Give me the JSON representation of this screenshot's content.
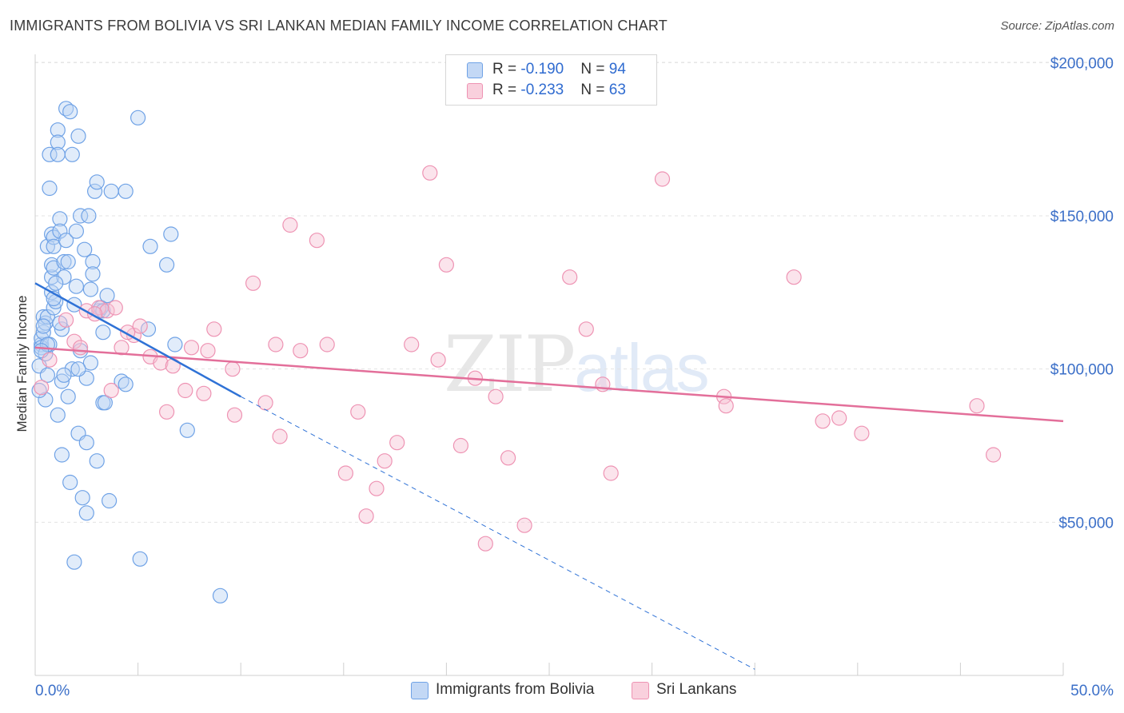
{
  "header": {
    "title": "IMMIGRANTS FROM BOLIVIA VS SRI LANKAN MEDIAN FAMILY INCOME CORRELATION CHART",
    "source": "Source: ZipAtlas.com"
  },
  "watermark": {
    "zip": "ZIP",
    "atlas": "atlas"
  },
  "legend_top": {
    "rows": [
      {
        "r_label": "R = ",
        "r_value": "-0.190",
        "n_label": "N = ",
        "n_value": "94",
        "color": "#a9c8f0"
      },
      {
        "r_label": "R = ",
        "r_value": "-0.233",
        "n_label": "N = ",
        "n_value": "63",
        "color": "#f5b8cb"
      }
    ]
  },
  "bottom_legend": {
    "items": [
      {
        "label": "Immigrants from Bolivia",
        "color": "#a9c8f0"
      },
      {
        "label": "Sri Lankans",
        "color": "#f5b8cb"
      }
    ]
  },
  "chart_data": {
    "type": "scatter",
    "title": "IMMIGRANTS FROM BOLIVIA VS SRI LANKAN MEDIAN FAMILY INCOME CORRELATION CHART",
    "xlabel": "",
    "ylabel": "Median Family Income",
    "xlim": [
      0,
      50
    ],
    "ylim": [
      0,
      205000
    ],
    "x_tick_labels": [
      "0.0%",
      "50.0%"
    ],
    "y_ticks": [
      50000,
      100000,
      150000,
      200000
    ],
    "y_tick_labels": [
      "$50,000",
      "$100,000",
      "$150,000",
      "$200,000"
    ],
    "grid": true,
    "colors": {
      "blue": "#6fa2e6",
      "pink": "#ee93b3",
      "blue_line": "#2f72d6",
      "pink_line": "#e36f9a"
    },
    "series": [
      {
        "name": "Immigrants from Bolivia",
        "points": [
          [
            0.2,
            101000
          ],
          [
            0.3,
            108000
          ],
          [
            0.3,
            110000
          ],
          [
            0.3,
            107000
          ],
          [
            0.4,
            117000
          ],
          [
            0.4,
            112000
          ],
          [
            0.5,
            115000
          ],
          [
            0.5,
            90000
          ],
          [
            0.5,
            105000
          ],
          [
            0.6,
            117000
          ],
          [
            0.6,
            140000
          ],
          [
            0.7,
            108000
          ],
          [
            0.8,
            125000
          ],
          [
            0.8,
            130000
          ],
          [
            0.8,
            134000
          ],
          [
            0.8,
            144000
          ],
          [
            0.9,
            120000
          ],
          [
            0.9,
            143000
          ],
          [
            0.9,
            133000
          ],
          [
            0.9,
            140000
          ],
          [
            0.7,
            170000
          ],
          [
            0.7,
            159000
          ],
          [
            1.0,
            122000
          ],
          [
            1.1,
            178000
          ],
          [
            1.1,
            174000
          ],
          [
            1.1,
            170000
          ],
          [
            1.1,
            85000
          ],
          [
            1.2,
            149000
          ],
          [
            1.2,
            145000
          ],
          [
            1.3,
            96000
          ],
          [
            1.3,
            72000
          ],
          [
            1.3,
            113000
          ],
          [
            1.4,
            135000
          ],
          [
            1.4,
            130000
          ],
          [
            1.5,
            185000
          ],
          [
            1.5,
            142000
          ],
          [
            1.6,
            135000
          ],
          [
            1.7,
            184000
          ],
          [
            1.8,
            170000
          ],
          [
            1.8,
            100000
          ],
          [
            1.9,
            121000
          ],
          [
            2.0,
            127000
          ],
          [
            2.0,
            145000
          ],
          [
            2.1,
            176000
          ],
          [
            2.1,
            79000
          ],
          [
            2.2,
            150000
          ],
          [
            2.2,
            106000
          ],
          [
            2.3,
            58000
          ],
          [
            2.5,
            76000
          ],
          [
            2.5,
            53000
          ],
          [
            2.5,
            97000
          ],
          [
            2.6,
            150000
          ],
          [
            2.7,
            126000
          ],
          [
            2.7,
            102000
          ],
          [
            2.8,
            135000
          ],
          [
            2.8,
            131000
          ],
          [
            2.9,
            158000
          ],
          [
            3.0,
            70000
          ],
          [
            3.0,
            161000
          ],
          [
            3.1,
            119000
          ],
          [
            3.2,
            120000
          ],
          [
            3.3,
            112000
          ],
          [
            3.3,
            89000
          ],
          [
            3.4,
            89000
          ],
          [
            3.5,
            124000
          ],
          [
            3.6,
            57000
          ],
          [
            3.7,
            158000
          ],
          [
            4.2,
            96000
          ],
          [
            4.4,
            158000
          ],
          [
            4.4,
            95000
          ],
          [
            5.0,
            182000
          ],
          [
            5.5,
            113000
          ],
          [
            5.6,
            140000
          ],
          [
            6.4,
            134000
          ],
          [
            6.6,
            144000
          ],
          [
            6.8,
            108000
          ],
          [
            7.4,
            80000
          ],
          [
            9.0,
            26000
          ],
          [
            5.1,
            38000
          ],
          [
            1.9,
            37000
          ],
          [
            1.7,
            63000
          ],
          [
            0.4,
            114000
          ],
          [
            0.6,
            108000
          ],
          [
            1.0,
            128000
          ],
          [
            1.4,
            98000
          ],
          [
            0.9,
            123000
          ],
          [
            2.4,
            139000
          ],
          [
            0.3,
            106000
          ],
          [
            1.2,
            115000
          ],
          [
            3.3,
            119000
          ],
          [
            0.6,
            98000
          ],
          [
            1.6,
            91000
          ],
          [
            2.1,
            100000
          ],
          [
            0.2,
            93000
          ]
        ]
      },
      {
        "name": "Sri Lankans",
        "points": [
          [
            0.3,
            94000
          ],
          [
            0.7,
            103000
          ],
          [
            1.5,
            116000
          ],
          [
            1.9,
            109000
          ],
          [
            2.5,
            119000
          ],
          [
            3.1,
            120000
          ],
          [
            3.5,
            119000
          ],
          [
            3.9,
            120000
          ],
          [
            4.2,
            107000
          ],
          [
            4.8,
            111000
          ],
          [
            5.1,
            114000
          ],
          [
            5.6,
            104000
          ],
          [
            6.1,
            102000
          ],
          [
            6.4,
            86000
          ],
          [
            6.7,
            101000
          ],
          [
            7.3,
            93000
          ],
          [
            7.6,
            107000
          ],
          [
            8.2,
            92000
          ],
          [
            8.4,
            106000
          ],
          [
            8.7,
            113000
          ],
          [
            9.6,
            100000
          ],
          [
            9.7,
            85000
          ],
          [
            10.6,
            128000
          ],
          [
            11.2,
            89000
          ],
          [
            11.7,
            108000
          ],
          [
            11.9,
            78000
          ],
          [
            12.4,
            147000
          ],
          [
            12.9,
            106000
          ],
          [
            13.7,
            142000
          ],
          [
            14.2,
            108000
          ],
          [
            15.1,
            66000
          ],
          [
            15.7,
            86000
          ],
          [
            16.1,
            52000
          ],
          [
            16.6,
            61000
          ],
          [
            17.0,
            70000
          ],
          [
            17.6,
            76000
          ],
          [
            18.3,
            108000
          ],
          [
            19.2,
            164000
          ],
          [
            19.6,
            103000
          ],
          [
            20.0,
            134000
          ],
          [
            20.7,
            75000
          ],
          [
            21.4,
            97000
          ],
          [
            21.9,
            43000
          ],
          [
            22.4,
            91000
          ],
          [
            23.0,
            71000
          ],
          [
            23.8,
            49000
          ],
          [
            26.0,
            130000
          ],
          [
            26.8,
            113000
          ],
          [
            27.6,
            95000
          ],
          [
            28.0,
            66000
          ],
          [
            30.5,
            162000
          ],
          [
            33.5,
            91000
          ],
          [
            33.6,
            88000
          ],
          [
            36.9,
            130000
          ],
          [
            38.3,
            83000
          ],
          [
            39.1,
            84000
          ],
          [
            40.2,
            79000
          ],
          [
            45.8,
            88000
          ],
          [
            46.6,
            72000
          ],
          [
            2.2,
            107000
          ],
          [
            3.7,
            93000
          ],
          [
            4.5,
            112000
          ],
          [
            2.9,
            118000
          ]
        ]
      }
    ],
    "trend_lines": [
      {
        "series": "Immigrants from Bolivia",
        "solid": [
          [
            0,
            128000
          ],
          [
            10,
            91000
          ]
        ],
        "dashed": [
          [
            10,
            91000
          ],
          [
            35,
            2000
          ]
        ]
      },
      {
        "series": "Sri Lankans",
        "solid": [
          [
            0,
            107000
          ],
          [
            50,
            83000
          ]
        ]
      }
    ]
  }
}
